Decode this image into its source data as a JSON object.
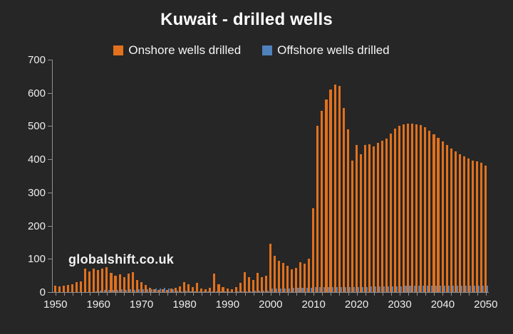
{
  "title": "Kuwait - drilled wells",
  "watermark": "globalshift.co.uk",
  "legend": [
    {
      "label": "Onshore wells drilled",
      "color": "#E2711D"
    },
    {
      "label": "Offshore wells drilled",
      "color": "#4F81BD"
    }
  ],
  "colors": {
    "background": "#262626",
    "onshore": "#E2711D",
    "offshore": "#4F81BD",
    "axis": "#8F8F8F",
    "text": "#F2F2F2"
  },
  "chart_data": {
    "type": "bar",
    "title": "Kuwait - drilled wells",
    "xlabel": "",
    "ylabel": "",
    "x_start": 1950,
    "x_end": 2050,
    "x_step": 1,
    "ylim": [
      0,
      700
    ],
    "y_ticks": [
      0,
      100,
      200,
      300,
      400,
      500,
      600,
      700
    ],
    "x_ticks": [
      1950,
      1960,
      1970,
      1980,
      1990,
      2000,
      2010,
      2020,
      2030,
      2040,
      2050
    ],
    "grid": false,
    "legend_position": "top",
    "series": [
      {
        "name": "Onshore wells drilled",
        "color": "#E2711D",
        "values": [
          19,
          18,
          19,
          21,
          23,
          30,
          32,
          71,
          63,
          70,
          66,
          71,
          74,
          58,
          49,
          54,
          44,
          55,
          59,
          36,
          31,
          21,
          12,
          8,
          6,
          8,
          6,
          10,
          12,
          18,
          30,
          24,
          16,
          28,
          11,
          9,
          13,
          55,
          24,
          15,
          11,
          8,
          14,
          27,
          60,
          45,
          36,
          58,
          46,
          50,
          145,
          110,
          95,
          88,
          80,
          68,
          72,
          90,
          86,
          100,
          253,
          500,
          545,
          580,
          610,
          625,
          620,
          555,
          490,
          395,
          443,
          415,
          444,
          446,
          438,
          450,
          455,
          462,
          478,
          492,
          500,
          505,
          508,
          508,
          506,
          503,
          496,
          486,
          475,
          464,
          453,
          443,
          432,
          423,
          415,
          408,
          402,
          397,
          393,
          389,
          382
        ]
      },
      {
        "name": "Offshore wells drilled",
        "color": "#4F81BD",
        "values": [
          0,
          0,
          0,
          0,
          0,
          0,
          0,
          0,
          0,
          2,
          5,
          6,
          7,
          6,
          7,
          8,
          7,
          8,
          7,
          8,
          9,
          8,
          9,
          10,
          11,
          12,
          10,
          9,
          4,
          3,
          4,
          3,
          3,
          3,
          2,
          2,
          2,
          3,
          3,
          2,
          2,
          1,
          2,
          3,
          3,
          3,
          4,
          4,
          4,
          5,
          10,
          10,
          11,
          10,
          11,
          12,
          12,
          12,
          13,
          13,
          14,
          14,
          14,
          15,
          15,
          15,
          15,
          15,
          15,
          16,
          16,
          16,
          16,
          17,
          17,
          17,
          17,
          18,
          18,
          18,
          18,
          19,
          19,
          19,
          19,
          19,
          20,
          20,
          20,
          20,
          20,
          20,
          20,
          20,
          20,
          20,
          20,
          20,
          20,
          20,
          20
        ]
      }
    ]
  }
}
